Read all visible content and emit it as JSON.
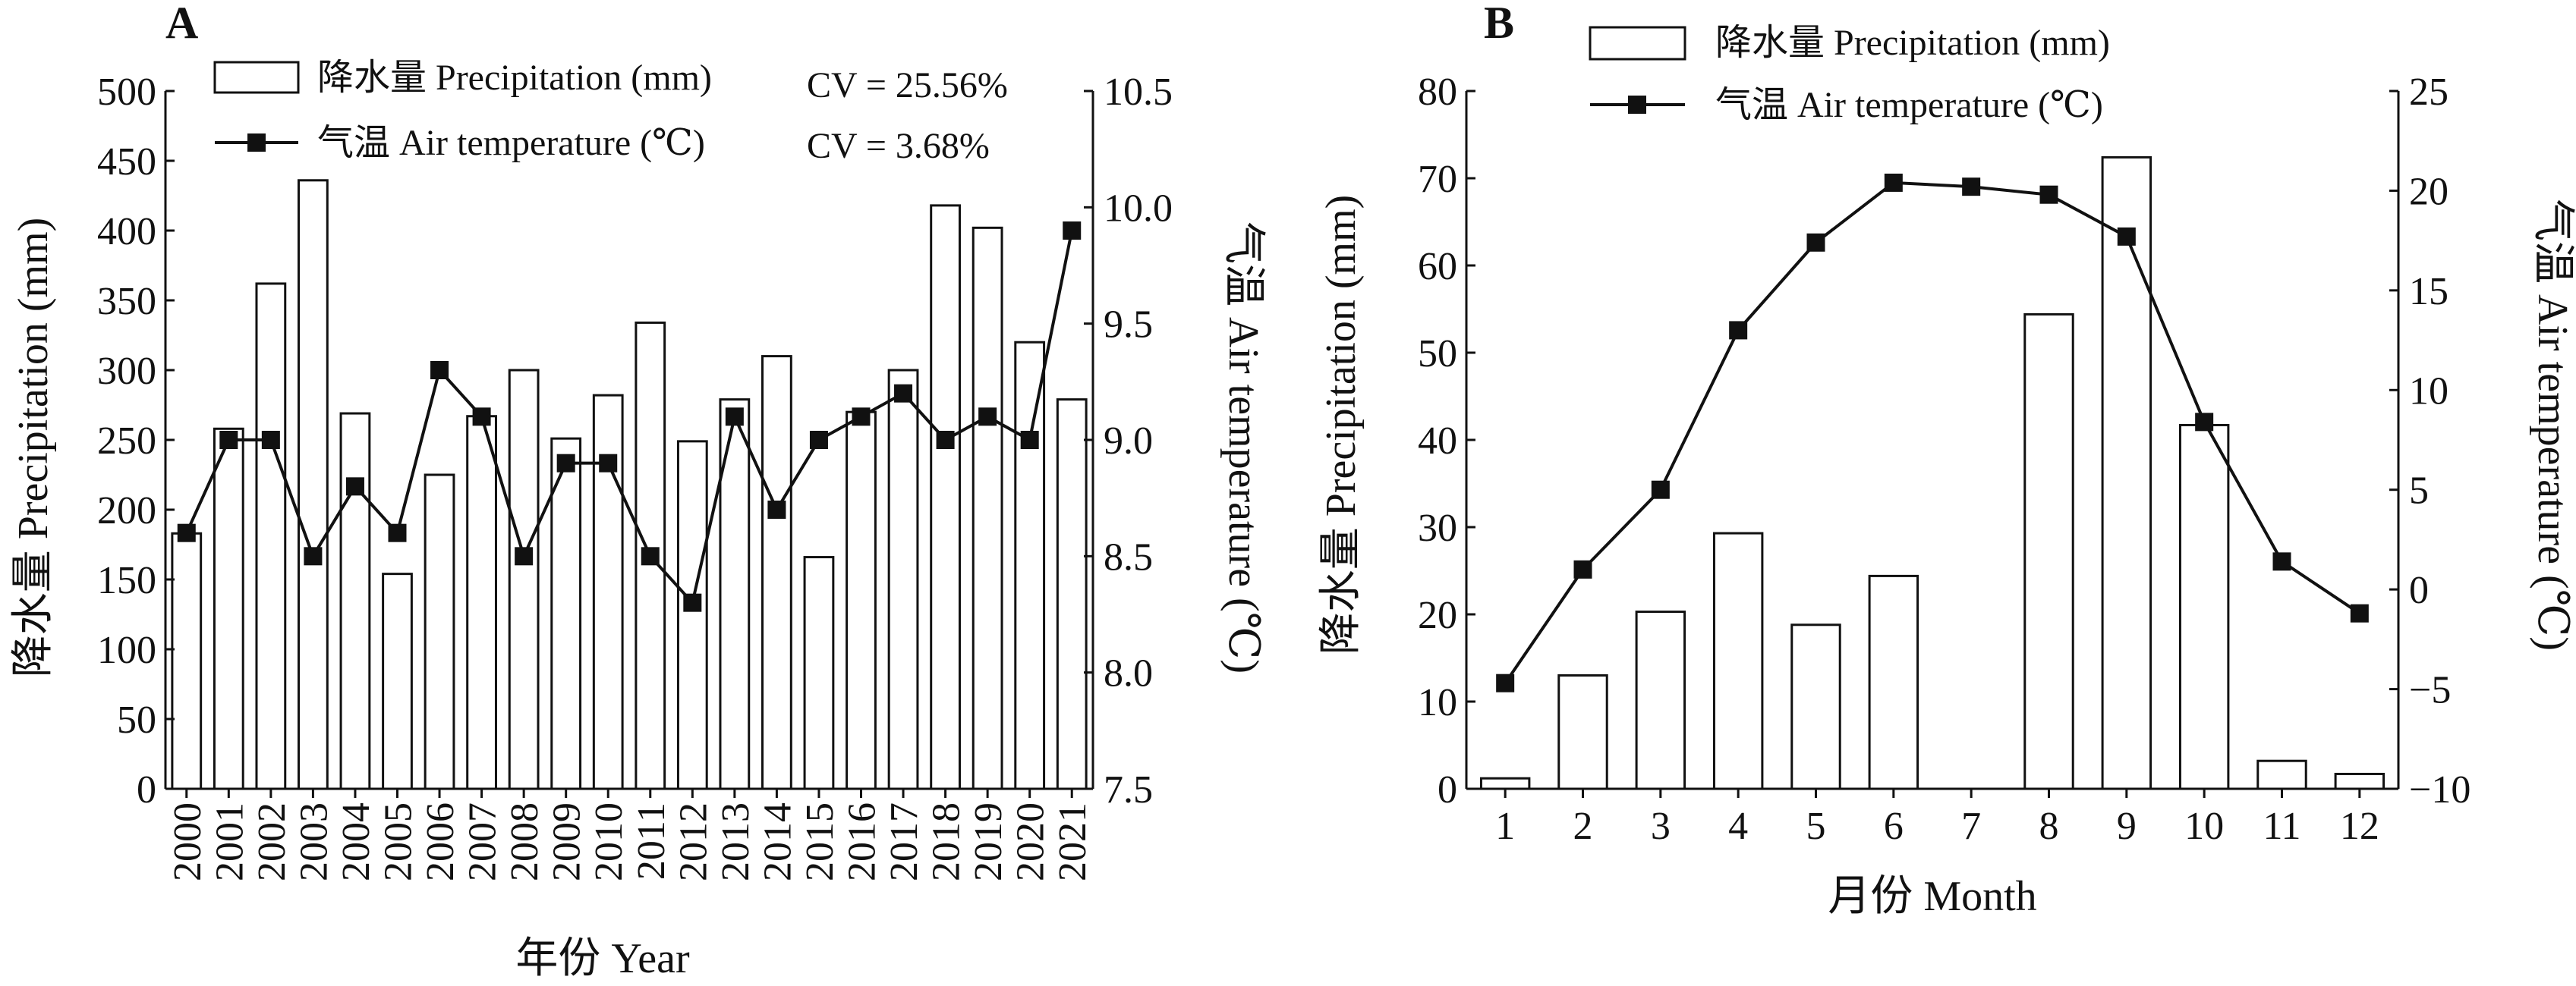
{
  "chart_data": [
    {
      "panel": "A",
      "type": "bar",
      "categories": [
        "2000",
        "2001",
        "2002",
        "2003",
        "2004",
        "2005",
        "2006",
        "2007",
        "2008",
        "2009",
        "2010",
        "2011",
        "2012",
        "2013",
        "2014",
        "2015",
        "2016",
        "2017",
        "2018",
        "2019",
        "2020",
        "2021"
      ],
      "xlabel": "年份 Year",
      "ylabel": "降水量 Precipitation (mm)",
      "y2label": "气温 Air temperature (℃)",
      "ylim": [
        0,
        500
      ],
      "yticks": [
        "0",
        "50",
        "100",
        "150",
        "200",
        "250",
        "300",
        "350",
        "400",
        "450",
        "500"
      ],
      "y2lim": [
        7.5,
        10.5
      ],
      "y2ticks": [
        "7.5",
        "8.0",
        "8.5",
        "9.0",
        "9.5",
        "10.0",
        "10.5"
      ],
      "legend_position": "top-left",
      "series": [
        {
          "name": "降水量 Precipitation (mm)",
          "type": "bar",
          "axis": "left",
          "values": [
            183,
            258,
            362,
            436,
            269,
            154,
            225,
            267,
            300,
            251,
            282,
            334,
            249,
            279,
            310,
            166,
            270,
            300,
            418,
            402,
            320,
            279
          ]
        },
        {
          "name": "气温 Air temperature (℃)",
          "type": "line",
          "axis": "right",
          "values": [
            8.6,
            9.0,
            9.0,
            8.5,
            8.8,
            8.6,
            9.3,
            9.1,
            8.5,
            8.9,
            8.9,
            8.5,
            8.3,
            9.1,
            8.7,
            9.0,
            9.1,
            9.2,
            9.0,
            9.1,
            9.0,
            9.9
          ]
        }
      ],
      "annotations": [
        "CV = 25.56%",
        "CV = 3.68%"
      ]
    },
    {
      "panel": "B",
      "type": "bar",
      "categories": [
        "1",
        "2",
        "3",
        "4",
        "5",
        "6",
        "7",
        "8",
        "9",
        "10",
        "11",
        "12"
      ],
      "xlabel": "月份 Month",
      "ylabel": "降水量 Precipitation (mm)",
      "y2label": "气温 Air temperature (℃)",
      "ylim": [
        0,
        80
      ],
      "yticks": [
        "0",
        "10",
        "20",
        "30",
        "40",
        "50",
        "60",
        "70",
        "80"
      ],
      "y2lim": [
        -10,
        25
      ],
      "y2ticks": [
        "−10",
        "−5",
        "0",
        "5",
        "10",
        "15",
        "20",
        "25"
      ],
      "legend_position": "top-center",
      "series": [
        {
          "name": "降水量 Precipitation (mm)",
          "type": "bar",
          "axis": "left",
          "values": [
            1.2,
            13,
            20.3,
            29.3,
            18.8,
            24.4,
            0,
            54.4,
            72.4,
            41.7,
            3.2,
            1.7
          ]
        },
        {
          "name": "气温 Air temperature (℃)",
          "type": "line",
          "axis": "right",
          "values": [
            -4.7,
            1.0,
            5.0,
            13.0,
            17.4,
            20.4,
            20.2,
            19.8,
            17.7,
            8.4,
            1.4,
            -1.2
          ]
        }
      ]
    }
  ]
}
